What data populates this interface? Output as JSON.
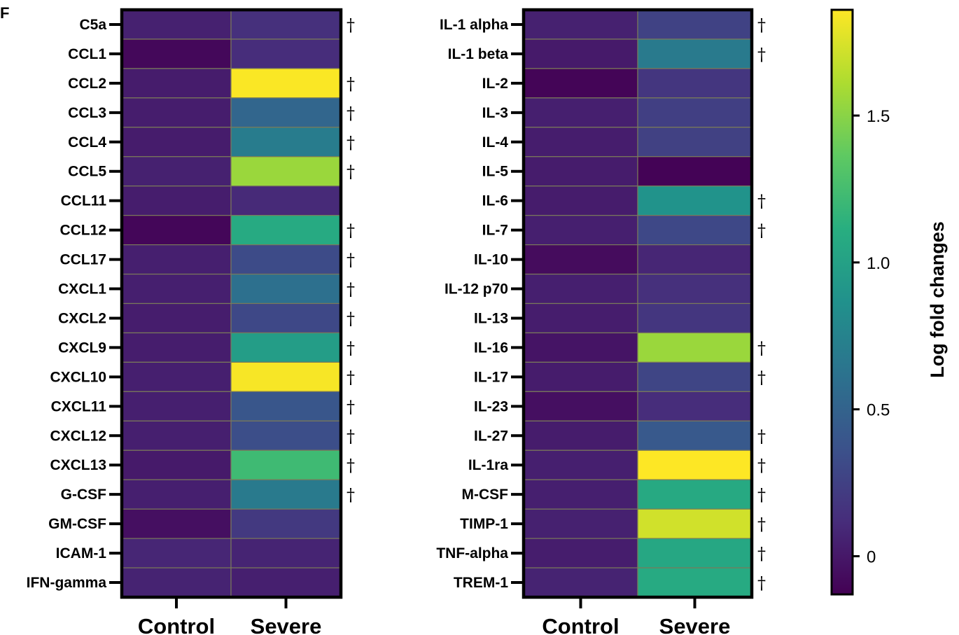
{
  "panel_label": "F",
  "chart_data": {
    "type": "heatmap",
    "columns": [
      "Control",
      "Severe"
    ],
    "colorbar": {
      "title": "Log fold changes",
      "range": [
        -0.13,
        1.86
      ],
      "ticks": [
        0,
        0.5,
        1.0,
        1.5
      ],
      "tick_labels": [
        "0",
        "0.5",
        "1.0",
        "1.5"
      ],
      "colors": [
        "#440154",
        "#472d7b",
        "#3b528b",
        "#2c728e",
        "#21918c",
        "#28ae80",
        "#5ec962",
        "#addc30",
        "#fde725"
      ]
    },
    "significance_marker": "†",
    "panels": [
      {
        "rows": [
          {
            "label": "C5a",
            "control": 0.05,
            "severe": 0.14,
            "sig": true
          },
          {
            "label": "CCL1",
            "control": -0.09,
            "severe": 0.12,
            "sig": false
          },
          {
            "label": "CCL2",
            "control": 0.02,
            "severe": 1.85,
            "sig": true
          },
          {
            "label": "CCL3",
            "control": 0.03,
            "severe": 0.52,
            "sig": true
          },
          {
            "label": "CCL4",
            "control": 0.02,
            "severe": 0.7,
            "sig": true
          },
          {
            "label": "CCL5",
            "control": 0.05,
            "severe": 1.55,
            "sig": true
          },
          {
            "label": "CCL11",
            "control": 0.03,
            "severe": 0.1,
            "sig": false
          },
          {
            "label": "CCL12",
            "control": -0.1,
            "severe": 1.08,
            "sig": true
          },
          {
            "label": "CCL17",
            "control": 0.04,
            "severe": 0.32,
            "sig": true
          },
          {
            "label": "CXCL1",
            "control": 0.04,
            "severe": 0.6,
            "sig": true
          },
          {
            "label": "CXCL2",
            "control": 0.03,
            "severe": 0.3,
            "sig": true
          },
          {
            "label": "CXCL9",
            "control": 0.03,
            "severe": 0.97,
            "sig": true
          },
          {
            "label": "CXCL10",
            "control": 0.04,
            "severe": 1.84,
            "sig": true
          },
          {
            "label": "CXCL11",
            "control": 0.04,
            "severe": 0.4,
            "sig": true
          },
          {
            "label": "CXCL12",
            "control": 0.04,
            "severe": 0.34,
            "sig": true
          },
          {
            "label": "CXCL13",
            "control": 0.01,
            "severe": 1.22,
            "sig": true
          },
          {
            "label": "G-CSF",
            "control": 0.04,
            "severe": 0.68,
            "sig": true
          },
          {
            "label": "GM-CSF",
            "control": -0.05,
            "severe": 0.2,
            "sig": false
          },
          {
            "label": "ICAM-1",
            "control": 0.08,
            "severe": 0.07,
            "sig": false
          },
          {
            "label": "IFN-gamma",
            "control": 0.06,
            "severe": 0.04,
            "sig": false
          }
        ]
      },
      {
        "rows": [
          {
            "label": "IL-1 alpha",
            "control": 0.05,
            "severe": 0.26,
            "sig": true
          },
          {
            "label": "IL-1 beta",
            "control": 0.01,
            "severe": 0.68,
            "sig": true
          },
          {
            "label": "IL-2",
            "control": -0.11,
            "severe": 0.18,
            "sig": false
          },
          {
            "label": "IL-3",
            "control": 0.04,
            "severe": 0.24,
            "sig": false
          },
          {
            "label": "IL-4",
            "control": 0.03,
            "severe": 0.25,
            "sig": false
          },
          {
            "label": "IL-5",
            "control": 0.02,
            "severe": -0.12,
            "sig": false
          },
          {
            "label": "IL-6",
            "control": 0.02,
            "severe": 0.88,
            "sig": true
          },
          {
            "label": "IL-7",
            "control": 0.04,
            "severe": 0.3,
            "sig": true
          },
          {
            "label": "IL-10",
            "control": -0.07,
            "severe": 0.08,
            "sig": false
          },
          {
            "label": "IL-12 p70",
            "control": 0.04,
            "severe": 0.14,
            "sig": false
          },
          {
            "label": "IL-13",
            "control": 0.03,
            "severe": 0.18,
            "sig": false
          },
          {
            "label": "IL-16",
            "control": -0.02,
            "severe": 1.55,
            "sig": true
          },
          {
            "label": "IL-17",
            "control": 0.02,
            "severe": 0.28,
            "sig": true
          },
          {
            "label": "IL-23",
            "control": -0.05,
            "severe": 0.12,
            "sig": false
          },
          {
            "label": "IL-27",
            "control": 0.02,
            "severe": 0.42,
            "sig": true
          },
          {
            "label": "IL-1ra",
            "control": 0.04,
            "severe": 1.86,
            "sig": true
          },
          {
            "label": "M-CSF",
            "control": 0.04,
            "severe": 1.07,
            "sig": true
          },
          {
            "label": "TIMP-1",
            "control": 0.05,
            "severe": 1.72,
            "sig": true
          },
          {
            "label": "TNF-alpha",
            "control": 0.03,
            "severe": 1.05,
            "sig": true
          },
          {
            "label": "TREM-1",
            "control": 0.06,
            "severe": 1.08,
            "sig": true
          }
        ]
      }
    ]
  }
}
